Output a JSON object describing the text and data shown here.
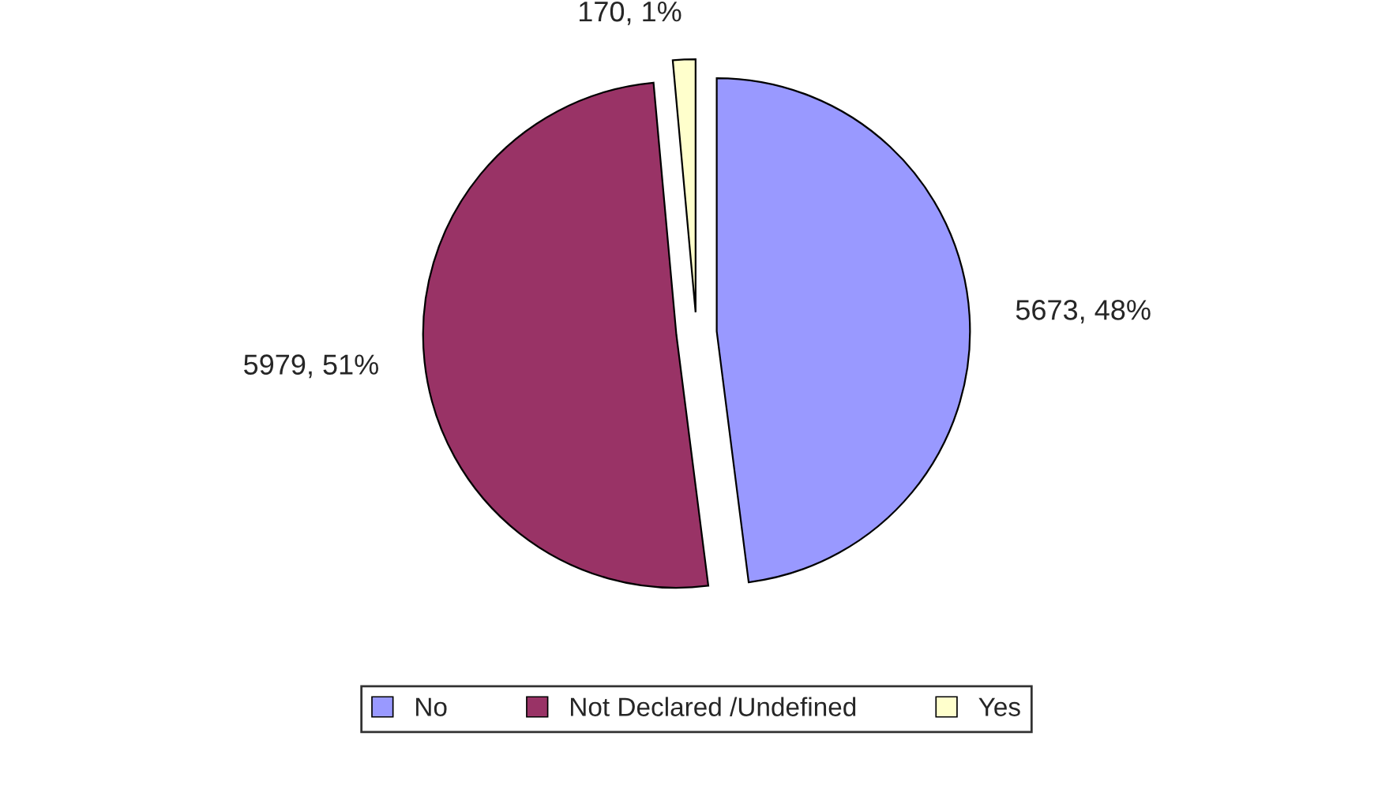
{
  "chart_data": {
    "type": "pie",
    "categories": [
      "No",
      "Not Declared /Undefined",
      "Yes"
    ],
    "values": [
      5673,
      5979,
      170
    ],
    "colors": [
      "#9999ff",
      "#993366",
      "#ffffcc"
    ],
    "value_labels": [
      "5673, 48%",
      "5979, 51%",
      "170, 1%"
    ],
    "legend": "bottom"
  }
}
